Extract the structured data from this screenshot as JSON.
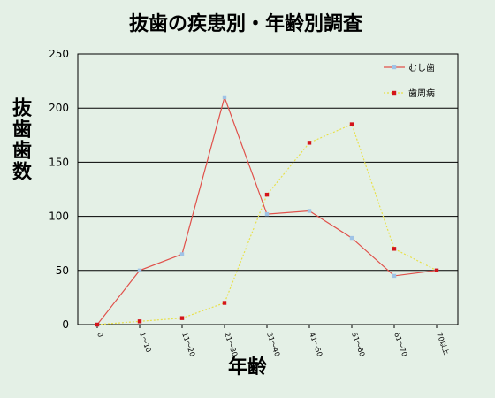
{
  "chart_data": {
    "type": "line",
    "title": "抜歯の疾患別・年齢別調査",
    "xlabel": "年齢",
    "ylabel": "抜歯歯数",
    "categories": [
      "0",
      "1～10",
      "11～20",
      "21～30",
      "31～40",
      "41～50",
      "51～60",
      "61～70",
      "70以上"
    ],
    "ylim": [
      0,
      250
    ],
    "yticks": [
      0,
      50,
      100,
      150,
      200,
      250
    ],
    "grid": true,
    "legend_position": "top-right",
    "series": [
      {
        "name": "むし歯",
        "values": [
          0,
          50,
          65,
          210,
          102,
          105,
          80,
          45,
          50
        ],
        "line_color": "#e0504a",
        "marker_color": "#9fc3e6"
      },
      {
        "name": "歯周病",
        "values": [
          0,
          3,
          6,
          20,
          120,
          168,
          185,
          70,
          50
        ],
        "line_color": "#e8e04a",
        "marker_color": "#d4141a"
      }
    ]
  }
}
